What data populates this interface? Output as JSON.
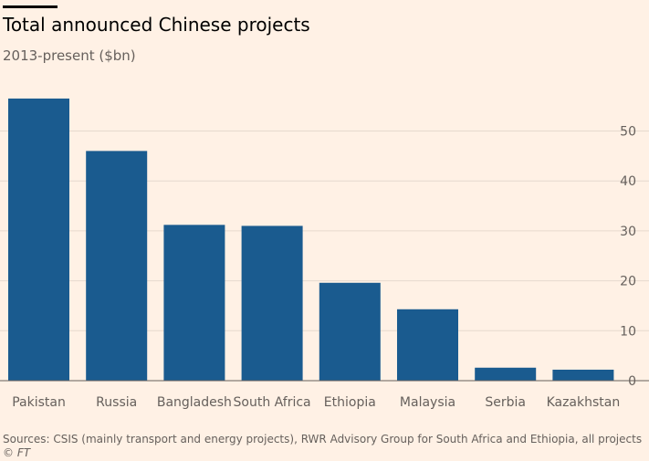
{
  "header": {
    "title": "Total announced Chinese projects",
    "subtitle": "2013-present ($bn)"
  },
  "footer": {
    "source": "Sources: CSIS (mainly transport and energy projects), RWR Advisory Group for South Africa and Ethiopia, all projects",
    "credit": "© FT"
  },
  "colors": {
    "bar": "#1a5b8f",
    "grid": "#e6d9ce",
    "axis": "#66605c",
    "background": "#fff1e5"
  },
  "chart_data": {
    "type": "bar",
    "title": "Total announced Chinese projects",
    "subtitle": "2013-present ($bn)",
    "categories": [
      "Pakistan",
      "Russia",
      "Bangladesh",
      "South Africa",
      "Ethiopia",
      "Malaysia",
      "Serbia",
      "Kazakhstan"
    ],
    "values": [
      56.5,
      46,
      31.2,
      31,
      19.6,
      14.3,
      2.6,
      2.2
    ],
    "ylim": [
      0,
      57
    ],
    "yticks": [
      0,
      10,
      20,
      30,
      40,
      50
    ],
    "y_axis_side": "right",
    "grid": true
  }
}
